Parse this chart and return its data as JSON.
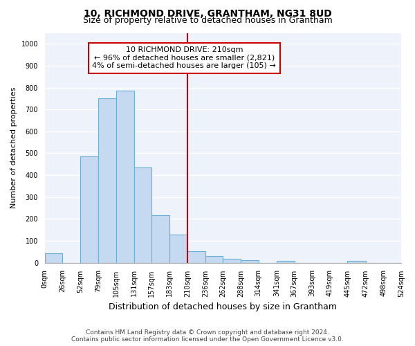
{
  "title": "10, RICHMOND DRIVE, GRANTHAM, NG31 8UD",
  "subtitle": "Size of property relative to detached houses in Grantham",
  "xlabel": "Distribution of detached houses by size in Grantham",
  "ylabel": "Number of detached properties",
  "bin_edges": [
    0,
    26,
    52,
    79,
    105,
    131,
    157,
    183,
    210,
    236,
    262,
    288,
    314,
    341,
    367,
    393,
    419,
    445,
    472,
    498,
    524
  ],
  "bar_heights": [
    42,
    0,
    485,
    750,
    785,
    435,
    218,
    128,
    52,
    30,
    17,
    10,
    0,
    8,
    0,
    0,
    0,
    8,
    0,
    0
  ],
  "bar_color": "#c5d9f0",
  "bar_edge_color": "#6baed6",
  "vline_x": 210,
  "vline_color": "#cc0000",
  "annotation_line1": "10 RICHMOND DRIVE: 210sqm",
  "annotation_line2": "← 96% of detached houses are smaller (2,821)",
  "annotation_line3": "4% of semi-detached houses are larger (105) →",
  "annotation_box_color": "#cc0000",
  "ylim": [
    0,
    1050
  ],
  "yticks": [
    0,
    100,
    200,
    300,
    400,
    500,
    600,
    700,
    800,
    900,
    1000
  ],
  "background_color": "#eef2fa",
  "grid_color": "#ffffff",
  "footer_line1": "Contains HM Land Registry data © Crown copyright and database right 2024.",
  "footer_line2": "Contains public sector information licensed under the Open Government Licence v3.0.",
  "title_fontsize": 10,
  "subtitle_fontsize": 9,
  "tick_label_fontsize": 7,
  "ylabel_fontsize": 8,
  "xlabel_fontsize": 9,
  "footer_fontsize": 6.5,
  "annotation_fontsize": 8
}
